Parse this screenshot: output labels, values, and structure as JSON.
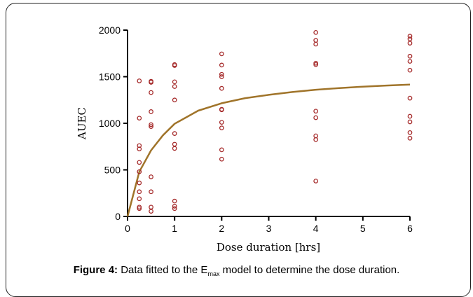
{
  "chart_data": {
    "type": "scatter",
    "xlabel": "Dose duration [hrs]",
    "ylabel": "AUEC",
    "xlim": [
      0,
      6
    ],
    "ylim": [
      0,
      2000
    ],
    "x_ticks": [
      0,
      1,
      2,
      3,
      4,
      5,
      6
    ],
    "y_ticks": [
      0,
      500,
      1000,
      1500,
      2000
    ],
    "grid": false,
    "marker_color": "#a52a2a",
    "curve_color": "#a0742a",
    "points": [
      {
        "x": 0.25,
        "y": 1455
      },
      {
        "x": 0.25,
        "y": 1055
      },
      {
        "x": 0.25,
        "y": 760
      },
      {
        "x": 0.25,
        "y": 725
      },
      {
        "x": 0.25,
        "y": 580
      },
      {
        "x": 0.25,
        "y": 480
      },
      {
        "x": 0.25,
        "y": 360
      },
      {
        "x": 0.25,
        "y": 265
      },
      {
        "x": 0.25,
        "y": 190
      },
      {
        "x": 0.25,
        "y": 100
      },
      {
        "x": 0.25,
        "y": 85
      },
      {
        "x": 0.5,
        "y": 1450
      },
      {
        "x": 0.5,
        "y": 1440
      },
      {
        "x": 0.5,
        "y": 1330
      },
      {
        "x": 0.5,
        "y": 1125
      },
      {
        "x": 0.5,
        "y": 985
      },
      {
        "x": 0.5,
        "y": 965
      },
      {
        "x": 0.5,
        "y": 425
      },
      {
        "x": 0.5,
        "y": 265
      },
      {
        "x": 0.5,
        "y": 100
      },
      {
        "x": 0.5,
        "y": 55
      },
      {
        "x": 1,
        "y": 1630
      },
      {
        "x": 1,
        "y": 1620
      },
      {
        "x": 1,
        "y": 1445
      },
      {
        "x": 1,
        "y": 1395
      },
      {
        "x": 1,
        "y": 1250
      },
      {
        "x": 1,
        "y": 890
      },
      {
        "x": 1,
        "y": 775
      },
      {
        "x": 1,
        "y": 730
      },
      {
        "x": 1,
        "y": 165
      },
      {
        "x": 1,
        "y": 110
      },
      {
        "x": 1,
        "y": 85
      },
      {
        "x": 2,
        "y": 1745
      },
      {
        "x": 2,
        "y": 1625
      },
      {
        "x": 2,
        "y": 1525
      },
      {
        "x": 2,
        "y": 1500
      },
      {
        "x": 2,
        "y": 1375
      },
      {
        "x": 2,
        "y": 1150
      },
      {
        "x": 2,
        "y": 1145
      },
      {
        "x": 2,
        "y": 1010
      },
      {
        "x": 2,
        "y": 950
      },
      {
        "x": 2,
        "y": 715
      },
      {
        "x": 2,
        "y": 615
      },
      {
        "x": 4,
        "y": 1975
      },
      {
        "x": 4,
        "y": 1890
      },
      {
        "x": 4,
        "y": 1850
      },
      {
        "x": 4,
        "y": 1645
      },
      {
        "x": 4,
        "y": 1630
      },
      {
        "x": 4,
        "y": 1130
      },
      {
        "x": 4,
        "y": 1060
      },
      {
        "x": 4,
        "y": 865
      },
      {
        "x": 4,
        "y": 825
      },
      {
        "x": 4,
        "y": 380
      },
      {
        "x": 6,
        "y": 1935
      },
      {
        "x": 6,
        "y": 1905
      },
      {
        "x": 6,
        "y": 1860
      },
      {
        "x": 6,
        "y": 1720
      },
      {
        "x": 6,
        "y": 1665
      },
      {
        "x": 6,
        "y": 1570
      },
      {
        "x": 6,
        "y": 1270
      },
      {
        "x": 6,
        "y": 1075
      },
      {
        "x": 6,
        "y": 1015
      },
      {
        "x": 6,
        "y": 900
      },
      {
        "x": 6,
        "y": 840
      }
    ],
    "fit_curve": {
      "model": "Emax",
      "x": [
        0,
        0.25,
        0.5,
        0.75,
        1,
        1.5,
        2,
        2.5,
        3,
        3.5,
        4,
        4.5,
        5,
        5.5,
        6
      ],
      "y": [
        0,
        480,
        710,
        870,
        995,
        1135,
        1215,
        1270,
        1305,
        1335,
        1360,
        1378,
        1393,
        1405,
        1415
      ]
    }
  },
  "caption": {
    "label": "Figure 4:",
    "text_before": " Data fitted to the E",
    "subscript": "max",
    "text_after": " model to determine the dose duration."
  }
}
